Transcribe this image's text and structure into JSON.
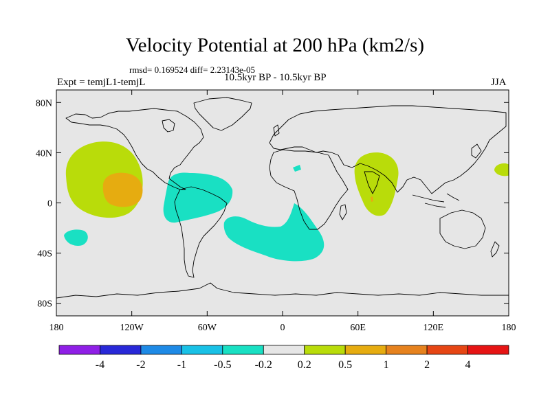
{
  "title": "Velocity Potential at 200 hPa (km2/s)",
  "stats": "rmsd= 0.169524 diff= 2.23143e-05",
  "left_label": "Expt = temjL1-temjL",
  "center_label": "10.5kyr BP - 10.5kyr BP",
  "right_label": "JJA",
  "map": {
    "lon_ticks": [
      "180",
      "120W",
      "60W",
      "0",
      "60E",
      "120E",
      "180"
    ],
    "lon_values": [
      -180,
      -120,
      -60,
      0,
      60,
      120,
      180
    ],
    "lat_ticks": [
      "80N",
      "40N",
      "0",
      "40S",
      "80S"
    ],
    "lat_values": [
      80,
      40,
      0,
      -40,
      -80
    ]
  },
  "colorbar": {
    "colors": [
      "#8f1fe6",
      "#2828d8",
      "#1e8ae6",
      "#19c1e6",
      "#19e0c3",
      "#e6e6e6",
      "#b9dc0a",
      "#e6ac10",
      "#e6821e",
      "#e64614",
      "#e61414"
    ],
    "labels": [
      "-4",
      "-2",
      "-1",
      "-0.5",
      "-0.2",
      "0.2",
      "0.5",
      "1",
      "2",
      "4"
    ]
  },
  "colors": {
    "map_background": "#e6e6e6",
    "positive": "#b9dc0a",
    "strong_positive": "#e6ac10",
    "negative": "#19e0c3"
  }
}
